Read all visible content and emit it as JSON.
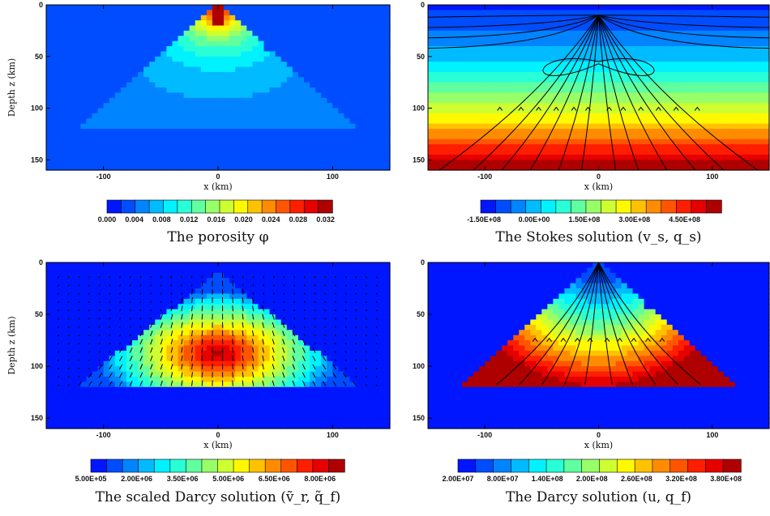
{
  "chart_data": [
    {
      "type": "heatmap",
      "title": "The porosity φ",
      "xlabel": "x (km)",
      "ylabel": "Depth z (km)",
      "xlim": [
        -150,
        150
      ],
      "ylim": [
        0,
        160
      ],
      "xticks": [
        "-100",
        "0",
        "100"
      ],
      "yticks": [
        "0",
        "50",
        "100",
        "150"
      ],
      "colorbar": {
        "min": 0.0,
        "max": 0.033,
        "levels": 16,
        "tick_labels": [
          "0.000",
          "0.004",
          "0.008",
          "0.012",
          "0.016",
          "0.020",
          "0.024",
          "0.028",
          "0.032"
        ]
      },
      "field": {
        "background": 0.0,
        "triangle_apex_depth": 0,
        "triangle_base_depth": 120,
        "triangle_half_width": 120,
        "peak_value": 0.032,
        "peak_depth": 10
      }
    },
    {
      "type": "heatmap",
      "title": "The Stokes solution (v_s, q_s)",
      "xlabel": "x (km)",
      "ylabel": "Depth z (km)",
      "xlim": [
        -150,
        150
      ],
      "ylim": [
        0,
        160
      ],
      "xticks": [
        "-100",
        "0",
        "100"
      ],
      "yticks": [
        "0",
        "50",
        "100",
        "150"
      ],
      "colorbar": {
        "min": -160000000.0,
        "max": 560000000.0,
        "levels": 16,
        "tick_labels": [
          "-1.50E+08",
          "0.00E+00",
          "1.50E+08",
          "3.00E+08",
          "4.50E+08"
        ]
      },
      "field": {
        "top_value": -150000000.0,
        "bottom_value": 550000000.0,
        "streamlines": true
      }
    },
    {
      "type": "heatmap",
      "title": "The scaled Darcy solution (ṽ_r, q̃_f)",
      "xlabel": "x (km)",
      "ylabel": "Depth z (km)",
      "xlim": [
        -150,
        150
      ],
      "ylim": [
        0,
        160
      ],
      "xticks": [
        "-100",
        "0",
        "100"
      ],
      "yticks": [
        "0",
        "50",
        "100",
        "150"
      ],
      "colorbar": {
        "min": 500000.0,
        "max": 8800000.0,
        "levels": 16,
        "tick_labels": [
          "5.00E+05",
          "2.00E+06",
          "3.50E+06",
          "5.00E+06",
          "6.50E+06",
          "8.00E+06"
        ]
      },
      "field": {
        "triangle_apex_depth": 15,
        "triangle_base_depth": 120,
        "triangle_half_width": 110,
        "peak_value": 8500000.0,
        "peak_depth": 85,
        "arrows": true
      }
    },
    {
      "type": "heatmap",
      "title": "The Darcy solution (u, q_f)",
      "xlabel": "x (km)",
      "ylabel": "Depth z (km)",
      "xlim": [
        -150,
        150
      ],
      "ylim": [
        0,
        160
      ],
      "xticks": [
        "-100",
        "0",
        "100"
      ],
      "yticks": [
        "0",
        "50",
        "100",
        "150"
      ],
      "colorbar": {
        "min": 20000000.0,
        "max": 400000000.0,
        "levels": 16,
        "tick_labels": [
          "2.00E+07",
          "8.00E+07",
          "1.40E+08",
          "2.00E+08",
          "2.60E+08",
          "3.20E+08",
          "3.80E+08"
        ]
      },
      "field": {
        "triangle_apex_depth": 0,
        "triangle_base_depth": 120,
        "triangle_half_width": 120,
        "top_value": 20000000.0,
        "bottom_value": 390000000.0,
        "streamlines": true
      }
    }
  ]
}
